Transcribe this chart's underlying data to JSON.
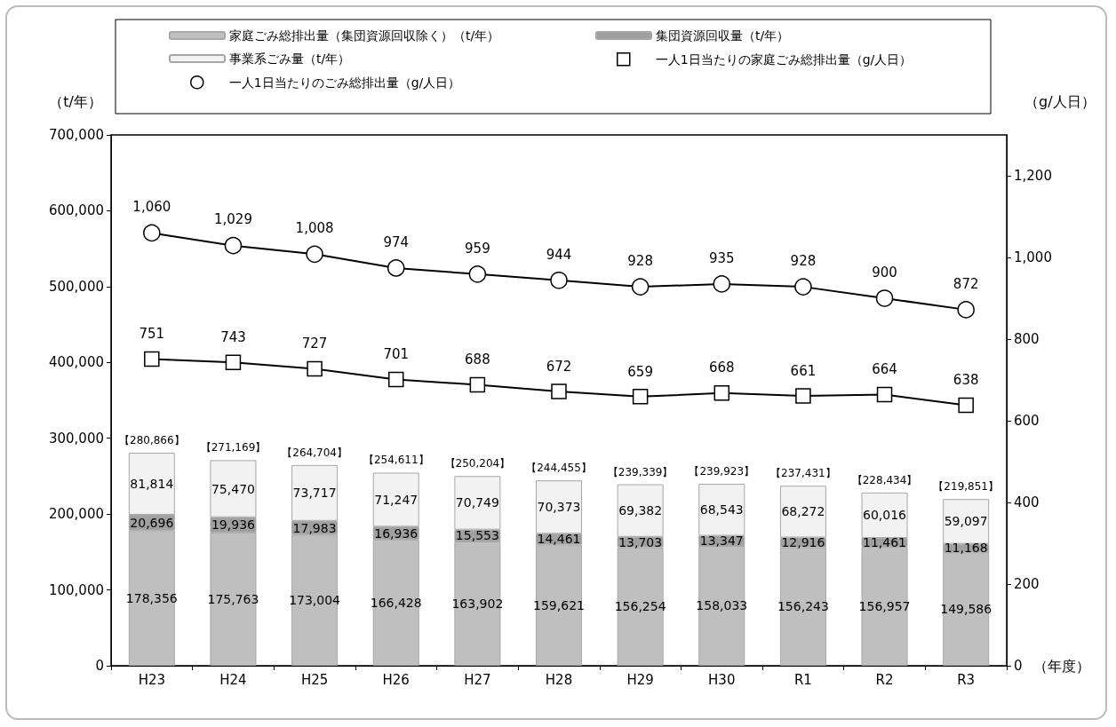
{
  "chart_data": {
    "type": "bar",
    "stacked": true,
    "categories": [
      "H23",
      "H24",
      "H25",
      "H26",
      "H27",
      "H28",
      "H29",
      "H30",
      "R1",
      "R2",
      "R3"
    ],
    "series": [
      {
        "name": "家庭ごみ総排出量（集団資源回収除く）（t/年）",
        "color": "#bfbfbf",
        "values": [
          178356,
          175763,
          173004,
          166428,
          163902,
          159621,
          156254,
          158033,
          156243,
          156957,
          149586
        ],
        "value_labels": [
          "178,356",
          "175,763",
          "173,004",
          "166,428",
          "163,902",
          "159,621",
          "156,254",
          "158,033",
          "156,243",
          "156,957",
          "149,586"
        ]
      },
      {
        "name": "集団資源回収量（t/年）",
        "color": "#a0a0a0",
        "values": [
          20696,
          19936,
          17983,
          16936,
          15553,
          14461,
          13703,
          13347,
          12916,
          11461,
          11168
        ],
        "value_labels": [
          "20,696",
          "19,936",
          "17,983",
          "16,936",
          "15,553",
          "14,461",
          "13,703",
          "13,347",
          "12,916",
          "11,461",
          "11,168"
        ]
      },
      {
        "name": "事業系ごみ量（t/年）",
        "color": "#f2f2f2",
        "values": [
          81814,
          75470,
          73717,
          71247,
          70749,
          70373,
          69382,
          68543,
          68272,
          60016,
          59097
        ],
        "value_labels": [
          "81,814",
          "75,470",
          "73,717",
          "71,247",
          "70,749",
          "70,373",
          "69,382",
          "68,543",
          "68,272",
          "60,016",
          "59,097"
        ]
      },
      {
        "name": "一人1日当たりの家庭ごみ総排出量（g/人日）",
        "type": "line",
        "axis": "y2",
        "marker": "square",
        "color": "#000000",
        "values": [
          751,
          743,
          727,
          701,
          688,
          672,
          659,
          668,
          661,
          664,
          638
        ]
      },
      {
        "name": "一人1日当たりのごみ総排出量（g/人日）",
        "type": "line",
        "axis": "y2",
        "marker": "circle",
        "color": "#000000",
        "values": [
          1060,
          1029,
          1008,
          974,
          959,
          944,
          928,
          935,
          928,
          900,
          872
        ],
        "value_labels": [
          "1,060",
          "1,029",
          "1,008",
          "974",
          "959",
          "944",
          "928",
          "935",
          "928",
          "900",
          "872"
        ]
      }
    ],
    "totals": [
      "【280,866】",
      "【271,169】",
      "【264,704】",
      "【254,611】",
      "【250,204】",
      "【244,455】",
      "【239,339】",
      "【239,923】",
      "【237,431】",
      "【228,434】",
      "【219,851】"
    ],
    "data_labels": true,
    "ylabel": "（t/年）",
    "y2label": "（g/人日）",
    "xlabel": "（年度）",
    "ylim": [
      0,
      700000
    ],
    "yticks": [
      0,
      {
        "value": 100000,
        "label": "100,000"
      },
      {
        "value": 200000,
        "label": "200,000"
      },
      {
        "value": 300000,
        "label": "300,000"
      },
      {
        "value": 400000,
        "label": "400,000"
      },
      {
        "value": 500000,
        "label": "500,000"
      },
      {
        "value": 600000,
        "label": "600,000"
      },
      {
        "value": 700000,
        "label": "700,000"
      }
    ],
    "y2lim": [
      0,
      1300
    ],
    "y2ticks": [
      0,
      200,
      400,
      600,
      800,
      {
        "value": 1000,
        "label": "1,000"
      },
      {
        "value": 1200,
        "label": "1,200"
      }
    ],
    "legend": "top",
    "grid": false
  }
}
